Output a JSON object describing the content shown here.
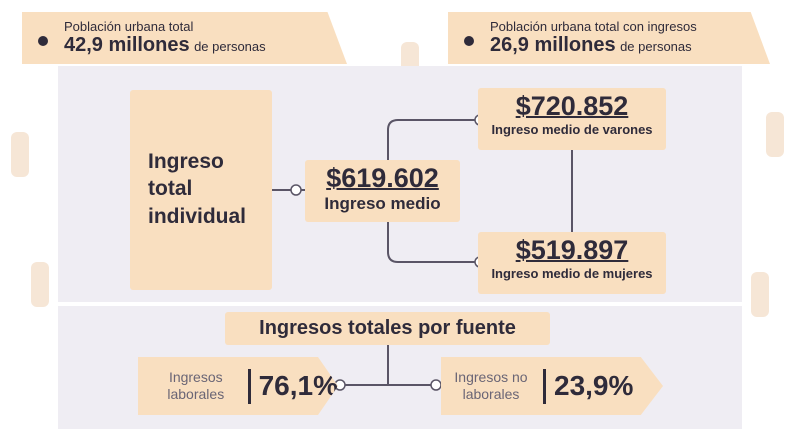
{
  "header": {
    "left": {
      "label": "Población urbana total",
      "value": "42,9 millones",
      "unit": "de personas"
    },
    "right": {
      "label": "Población urbana total con ingresos",
      "value": "26,9 millones",
      "unit": "de personas"
    }
  },
  "income": {
    "title": "Ingreso total individual",
    "mean": {
      "amount": "$619.602",
      "label": "Ingreso medio"
    },
    "men": {
      "amount": "$720.852",
      "label": "Ingreso medio de varones"
    },
    "women": {
      "amount": "$519.897",
      "label": "Ingreso medio de mujeres"
    }
  },
  "sources": {
    "title": "Ingresos totales por fuente",
    "items": [
      {
        "label": "Ingresos laborales",
        "value": "76,1%"
      },
      {
        "label": "Ingresos no laborales",
        "value": "23,9%"
      }
    ]
  }
}
